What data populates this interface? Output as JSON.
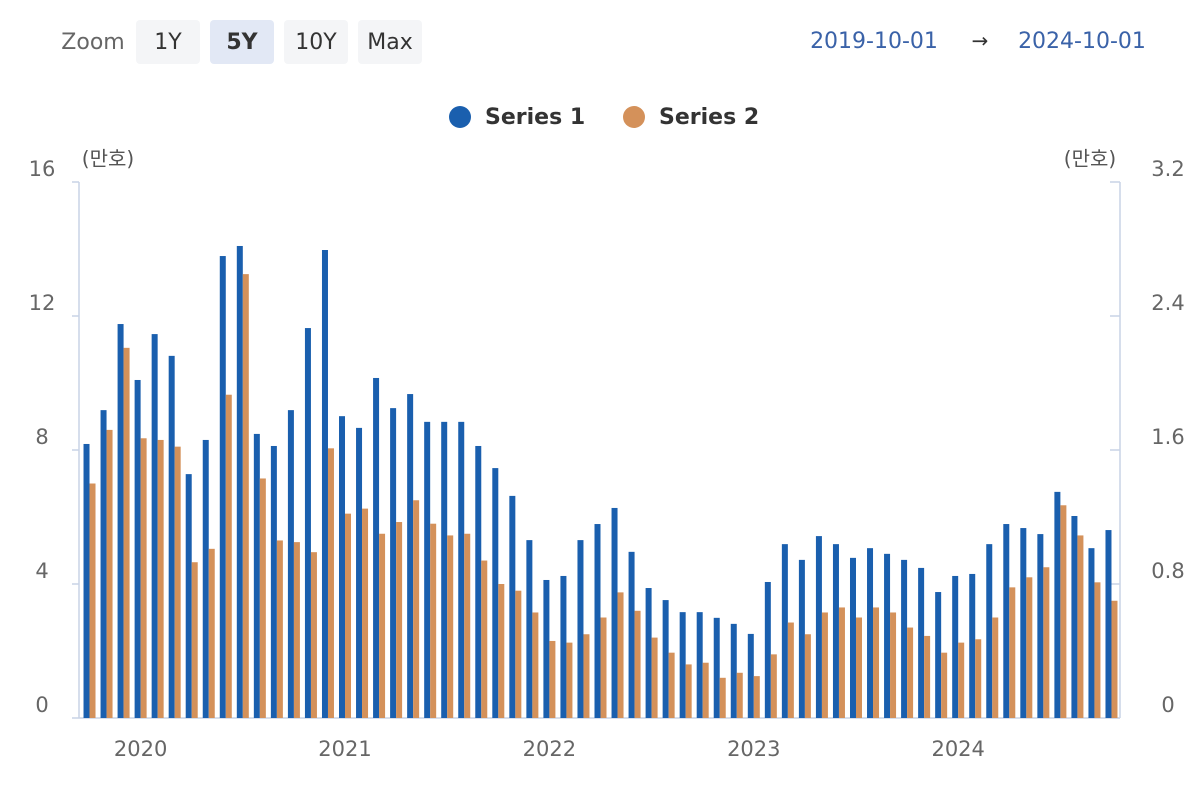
{
  "controls": {
    "zoom_label": "Zoom",
    "buttons": [
      "1Y",
      "5Y",
      "10Y",
      "Max"
    ],
    "active": "5Y",
    "date_from": "2019-10-01",
    "arrow": "→",
    "date_to": "2024-10-01"
  },
  "chart_data": {
    "type": "bar",
    "y_unit": "(만호)",
    "y2_unit": "(만호)",
    "categories": [
      null,
      null,
      null,
      "2020",
      null,
      null,
      null,
      null,
      null,
      null,
      null,
      null,
      null,
      null,
      null,
      "2021",
      null,
      null,
      null,
      null,
      null,
      null,
      null,
      null,
      null,
      null,
      null,
      "2022",
      null,
      null,
      null,
      null,
      null,
      null,
      null,
      null,
      null,
      null,
      null,
      "2023",
      null,
      null,
      null,
      null,
      null,
      null,
      null,
      null,
      null,
      null,
      null,
      "2024",
      null,
      null,
      null,
      null,
      null,
      null,
      null,
      null,
      null
    ],
    "series": [
      {
        "name": "Series 1",
        "color": "#1a5fae",
        "values": [
          8.18,
          9.19,
          11.76,
          10.09,
          11.46,
          10.81,
          7.28,
          8.3,
          13.79,
          14.09,
          8.48,
          8.12,
          9.19,
          11.64,
          13.97,
          9.01,
          8.66,
          10.15,
          9.25,
          9.67,
          8.84,
          8.84,
          8.84,
          8.12,
          7.46,
          6.63,
          5.31,
          4.12,
          4.24,
          5.31,
          5.79,
          6.27,
          4.96,
          3.88,
          3.52,
          3.16,
          3.16,
          2.99,
          2.81,
          2.51,
          4.06,
          5.19,
          4.72,
          5.43,
          5.19,
          4.78,
          5.07,
          4.9,
          4.72,
          4.48,
          3.76,
          4.24,
          4.3,
          5.19,
          5.79,
          5.67,
          5.49,
          6.75,
          6.03,
          5.07,
          5.61
        ]
      },
      {
        "name": "Series 2",
        "color": "#d4915a",
        "axis": "y2",
        "values": [
          1.4,
          1.72,
          2.21,
          1.67,
          1.66,
          1.62,
          0.93,
          1.01,
          1.93,
          2.65,
          1.43,
          1.06,
          1.05,
          0.99,
          1.61,
          1.22,
          1.25,
          1.1,
          1.17,
          1.3,
          1.16,
          1.09,
          1.1,
          0.94,
          0.8,
          0.76,
          0.63,
          0.46,
          0.45,
          0.5,
          0.6,
          0.75,
          0.64,
          0.48,
          0.39,
          0.32,
          0.33,
          0.24,
          0.27,
          0.25,
          0.38,
          0.57,
          0.5,
          0.63,
          0.66,
          0.6,
          0.66,
          0.63,
          0.54,
          0.49,
          0.39,
          0.45,
          0.47,
          0.6,
          0.78,
          0.84,
          0.9,
          1.27,
          1.09,
          0.81,
          0.7
        ]
      }
    ],
    "ylim": [
      0,
      16
    ],
    "yticks": [
      0,
      4,
      8,
      12,
      16
    ],
    "y2lim": [
      0,
      3.2
    ],
    "y2ticks": [
      0,
      0.8,
      1.6,
      2.4,
      3.2
    ],
    "grid": false
  }
}
